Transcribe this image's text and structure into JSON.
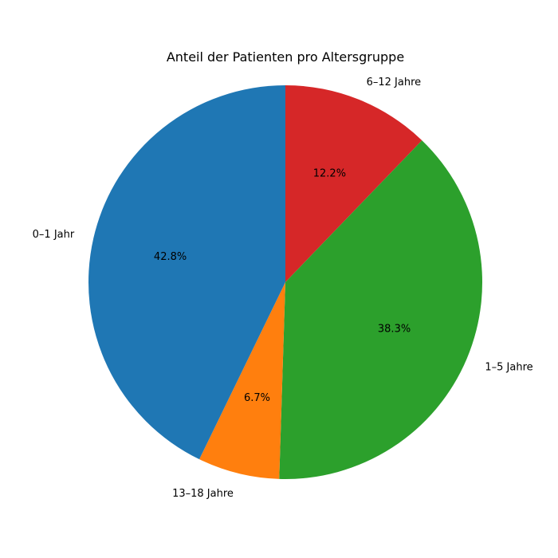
{
  "chart_data": {
    "type": "pie",
    "title": "Anteil der Patienten pro Altersgruppe",
    "start_angle_deg": 90,
    "direction": "clockwise",
    "slices": [
      {
        "label": "6–12 Jahre",
        "value": 12.2,
        "pct_label": "12.2%",
        "color": "#d62728"
      },
      {
        "label": "1–5 Jahre",
        "value": 38.3,
        "pct_label": "38.3%",
        "color": "#2ca02c"
      },
      {
        "label": "13–18 Jahre",
        "value": 6.7,
        "pct_label": "6.7%",
        "color": "#ff7f0e"
      },
      {
        "label": "0–1 Jahr",
        "value": 42.8,
        "pct_label": "42.8%",
        "color": "#1f77b4"
      }
    ]
  }
}
